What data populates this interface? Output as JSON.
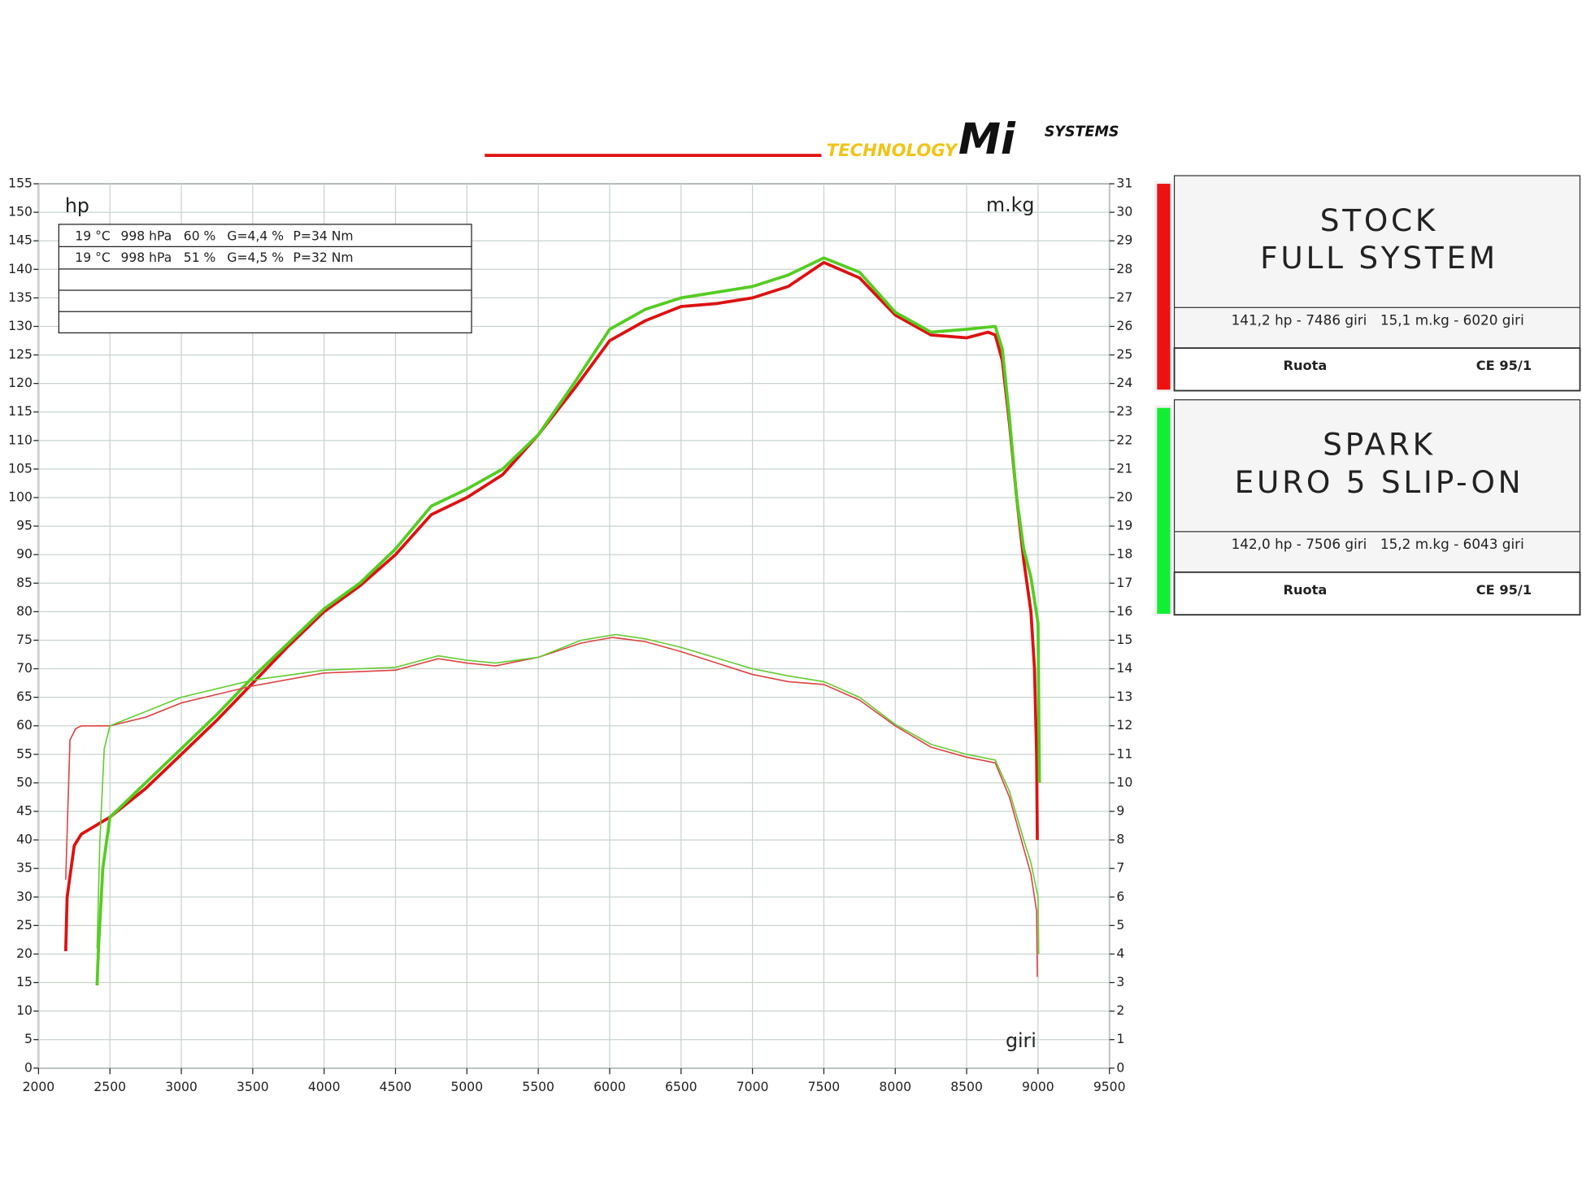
{
  "logo": {
    "technology": "TECHNOLOGY",
    "mark": "Mi",
    "systems": "SYSTEMS"
  },
  "chart_data": {
    "type": "line",
    "y_label": "hp",
    "y2_label": "m.kg",
    "x_label": "giri",
    "xlim": [
      2000,
      9500
    ],
    "xticks": [
      2000,
      2500,
      3000,
      3500,
      4000,
      4500,
      5000,
      5500,
      6000,
      6500,
      7000,
      7500,
      8000,
      8500,
      9000,
      9500
    ],
    "ylim": [
      0,
      155
    ],
    "yticks": [
      0,
      5,
      10,
      15,
      20,
      25,
      30,
      35,
      40,
      45,
      50,
      55,
      60,
      65,
      70,
      75,
      80,
      85,
      90,
      95,
      100,
      105,
      110,
      115,
      120,
      125,
      130,
      135,
      140,
      145,
      150,
      155
    ],
    "y2lim": [
      0,
      31
    ],
    "y2ticks": [
      0,
      1,
      2,
      3,
      4,
      5,
      6,
      7,
      8,
      9,
      10,
      11,
      12,
      13,
      14,
      15,
      16,
      17,
      18,
      19,
      20,
      21,
      22,
      23,
      24,
      25,
      26,
      27,
      28,
      29,
      30,
      31
    ],
    "grid": true,
    "conditions": [
      [
        "19 °C",
        "998 hPa",
        "60 %",
        "G=4,4 %",
        "P=34 Nm"
      ],
      [
        "19 °C",
        "998 hPa",
        "51 %",
        "G=4,5 %",
        "P=32 Nm"
      ]
    ],
    "series": [
      {
        "color": "#dd1111",
        "width": 3,
        "axis": "y",
        "x": [
          2190,
          2200,
          2250,
          2300,
          2500,
          2750,
          3000,
          3250,
          3500,
          3750,
          4000,
          4250,
          4500,
          4750,
          5000,
          5250,
          5500,
          5750,
          6000,
          6250,
          6500,
          6750,
          7000,
          7250,
          7500,
          7750,
          8000,
          8250,
          8500,
          8650,
          8700,
          8750,
          8800,
          8850,
          8900,
          8950,
          8975,
          8990,
          8995
        ],
        "values": [
          20.5,
          30,
          39,
          41,
          44,
          49,
          55,
          61,
          67.5,
          74,
          80,
          84.5,
          90,
          97,
          100,
          104,
          111,
          119,
          127.5,
          131,
          133.5,
          134,
          135,
          137,
          141.2,
          138.5,
          132,
          128.5,
          128,
          129,
          128.5,
          124,
          113,
          100,
          89,
          80,
          70,
          55,
          40
        ]
      },
      {
        "color": "#55cc22",
        "width": 3,
        "axis": "y",
        "x": [
          2410,
          2420,
          2450,
          2500,
          2750,
          3000,
          3250,
          3500,
          3750,
          4000,
          4250,
          4500,
          4750,
          5000,
          5250,
          5500,
          5750,
          6000,
          6250,
          6500,
          6750,
          7000,
          7250,
          7500,
          7750,
          8000,
          8250,
          8500,
          8700,
          8750,
          8800,
          8850,
          8900,
          8950,
          9000,
          9010
        ],
        "values": [
          14.5,
          21,
          35,
          44,
          50,
          56,
          62,
          68.5,
          74.5,
          80.5,
          85,
          91,
          98.5,
          101.5,
          105,
          111,
          120,
          129.5,
          133,
          135,
          136,
          137,
          139,
          142,
          139.5,
          132.5,
          129,
          129.5,
          130,
          126,
          114,
          100,
          91,
          86,
          78,
          50
        ]
      },
      {
        "color": "#dd4444",
        "width": 1.3,
        "axis": "y2",
        "x": [
          2190,
          2220,
          2260,
          2300,
          2500,
          2750,
          3000,
          3500,
          4000,
          4500,
          4800,
          5000,
          5200,
          5500,
          5800,
          6020,
          6250,
          6500,
          7000,
          7250,
          7500,
          7750,
          8000,
          8250,
          8500,
          8700,
          8800,
          8900,
          8950,
          8990,
          8995
        ],
        "values": [
          6.6,
          11.5,
          11.9,
          12,
          12,
          12.3,
          12.8,
          13.4,
          13.85,
          13.95,
          14.35,
          14.2,
          14.1,
          14.4,
          14.9,
          15.1,
          14.95,
          14.6,
          13.8,
          13.55,
          13.45,
          12.9,
          12.0,
          11.25,
          10.9,
          10.7,
          9.5,
          7.7,
          6.8,
          5.5,
          3.2
        ]
      },
      {
        "color": "#66cc33",
        "width": 1.3,
        "axis": "y2",
        "x": [
          2410,
          2430,
          2460,
          2500,
          2750,
          3000,
          3500,
          4000,
          4500,
          4800,
          5000,
          5200,
          5500,
          5800,
          6043,
          6250,
          6500,
          7000,
          7250,
          7500,
          7750,
          8000,
          8250,
          8500,
          8700,
          8800,
          8900,
          8950,
          9000,
          9005
        ],
        "values": [
          4.2,
          8,
          11.2,
          12,
          12.5,
          13.0,
          13.6,
          13.95,
          14.05,
          14.45,
          14.3,
          14.2,
          14.4,
          15.0,
          15.2,
          15.05,
          14.75,
          14.0,
          13.75,
          13.55,
          13.0,
          12.05,
          11.35,
          11.0,
          10.8,
          9.7,
          8.0,
          7.2,
          6.0,
          4.0
        ]
      }
    ],
    "legend": [
      {
        "color": "#ee1111",
        "title_lines": [
          "STOCK",
          "FULL SYSTEM"
        ],
        "power_peak": "141,2 hp - 7486 giri",
        "torque_peak": "15,1 m.kg - 6020 giri",
        "wheel": "Ruota",
        "standard": "CE 95/1"
      },
      {
        "color": "#11ee33",
        "title_lines": [
          "SPARK",
          "EURO 5 SLIP-ON"
        ],
        "power_peak": "142,0 hp - 7506 giri",
        "torque_peak": "15,2 m.kg - 6043 giri",
        "wheel": "Ruota",
        "standard": "CE 95/1"
      }
    ]
  }
}
